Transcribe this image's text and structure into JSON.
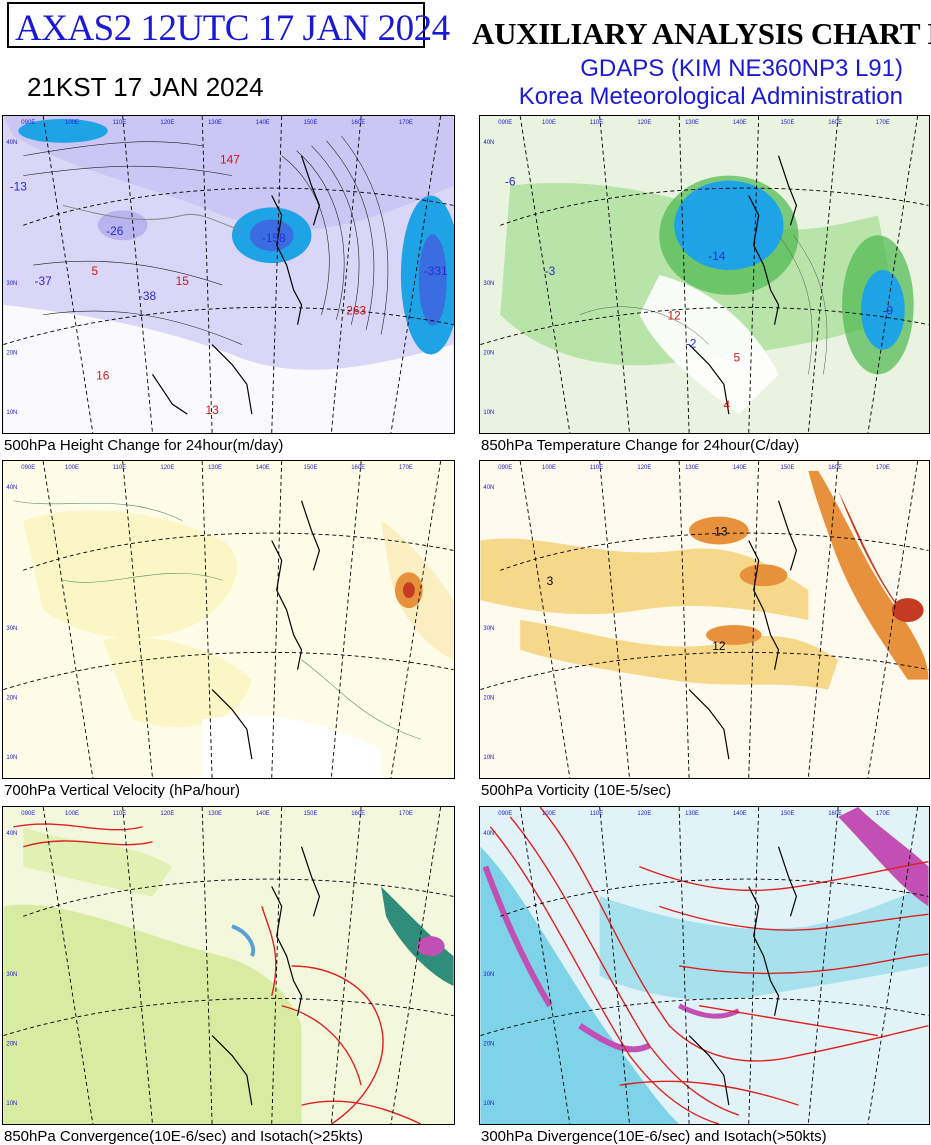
{
  "header": {
    "product": "AXAS2  12UTC 17 JAN 2024",
    "local_time": "21KST 17 JAN 2024",
    "title": "AUXILIARY ANALYSIS CHART II",
    "model": "GDAPS (KIM NE360NP3 L91)",
    "agency": "Korea Meteorological Administration"
  },
  "longitude_labels": [
    "090E",
    "100E",
    "110E",
    "120E",
    "130E",
    "140E",
    "150E",
    "160E",
    "170E"
  ],
  "latitude_labels": [
    "10N",
    "20N",
    "30N",
    "40N"
  ],
  "panels": [
    {
      "caption": "500hPa Height Change for 24hour(m/day)",
      "values": [
        {
          "text": "-13",
          "color": "#2b2bd0"
        },
        {
          "text": "-26",
          "color": "#2b2bd0"
        },
        {
          "text": "-37",
          "color": "#2b2bd0"
        },
        {
          "text": "-38",
          "color": "#2b2bd0"
        },
        {
          "text": "5",
          "color": "#d01818"
        },
        {
          "text": "15",
          "color": "#d01818"
        },
        {
          "text": "147",
          "color": "#d01818"
        },
        {
          "text": "-158",
          "color": "#2b2bd0"
        },
        {
          "text": "263",
          "color": "#d01818"
        },
        {
          "text": "-331",
          "color": "#2b2bd0"
        },
        {
          "text": "16",
          "color": "#d01818"
        },
        {
          "text": "13",
          "color": "#d01818"
        }
      ]
    },
    {
      "caption": "850hPa Temperature Change for 24hour(C/day)",
      "values": [
        {
          "text": "-6",
          "color": "#2b2bd0"
        },
        {
          "text": "-14",
          "color": "#2b2bd0"
        },
        {
          "text": "-9",
          "color": "#2b2bd0"
        },
        {
          "text": "12",
          "color": "#d01818"
        },
        {
          "text": "5",
          "color": "#d01818"
        },
        {
          "text": "4",
          "color": "#d01818"
        },
        {
          "text": "-2",
          "color": "#2b2bd0"
        },
        {
          "text": "-3",
          "color": "#2b2bd0"
        }
      ]
    },
    {
      "caption": "700hPa Vertical Velocity (hPa/hour)",
      "values": []
    },
    {
      "caption": "500hPa Vorticity (10E-5/sec)",
      "values": [
        {
          "text": "13",
          "color": "#000000"
        },
        {
          "text": "3",
          "color": "#000000"
        },
        {
          "text": "12",
          "color": "#000000"
        }
      ]
    },
    {
      "caption": "850hPa Convergence(10E-6/sec) and Isotach(>25kts)",
      "values": []
    },
    {
      "caption": "300hPa Divergence(10E-6/sec) and Isotach(>50kts)",
      "values": []
    }
  ],
  "colors": {
    "title_blue": "#1a1ad6",
    "positive_red": "#d01818",
    "negative_blue": "#2b2bd0",
    "height_fall_shade": "#b9b4ef",
    "strong_fall_shade": "#1ea3e6",
    "temp_cooling_shade": "#8fd18a",
    "vorticity_shade": "#f3c36a",
    "convergence_shade": "#bfe07a",
    "divergence_shade": "#7fd3e8",
    "isotach_line": "#e02020"
  }
}
